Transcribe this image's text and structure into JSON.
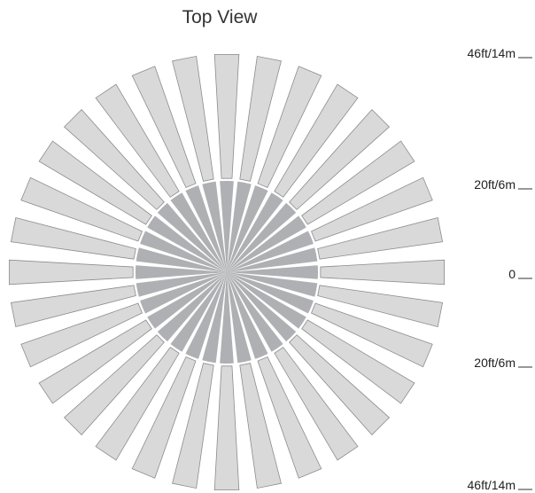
{
  "title": "Top View",
  "scale": {
    "labels": [
      "46ft/14m",
      "20ft/6m",
      "0",
      "20ft/6m",
      "46ft/14m"
    ]
  },
  "diagram": {
    "segment_count": 32,
    "colors": {
      "outer_fill": "#d9d9d9",
      "outer_stroke": "#8c8c8c",
      "inner_fill": "#aeb0b3",
      "gap_fill": "#ffffff"
    }
  }
}
